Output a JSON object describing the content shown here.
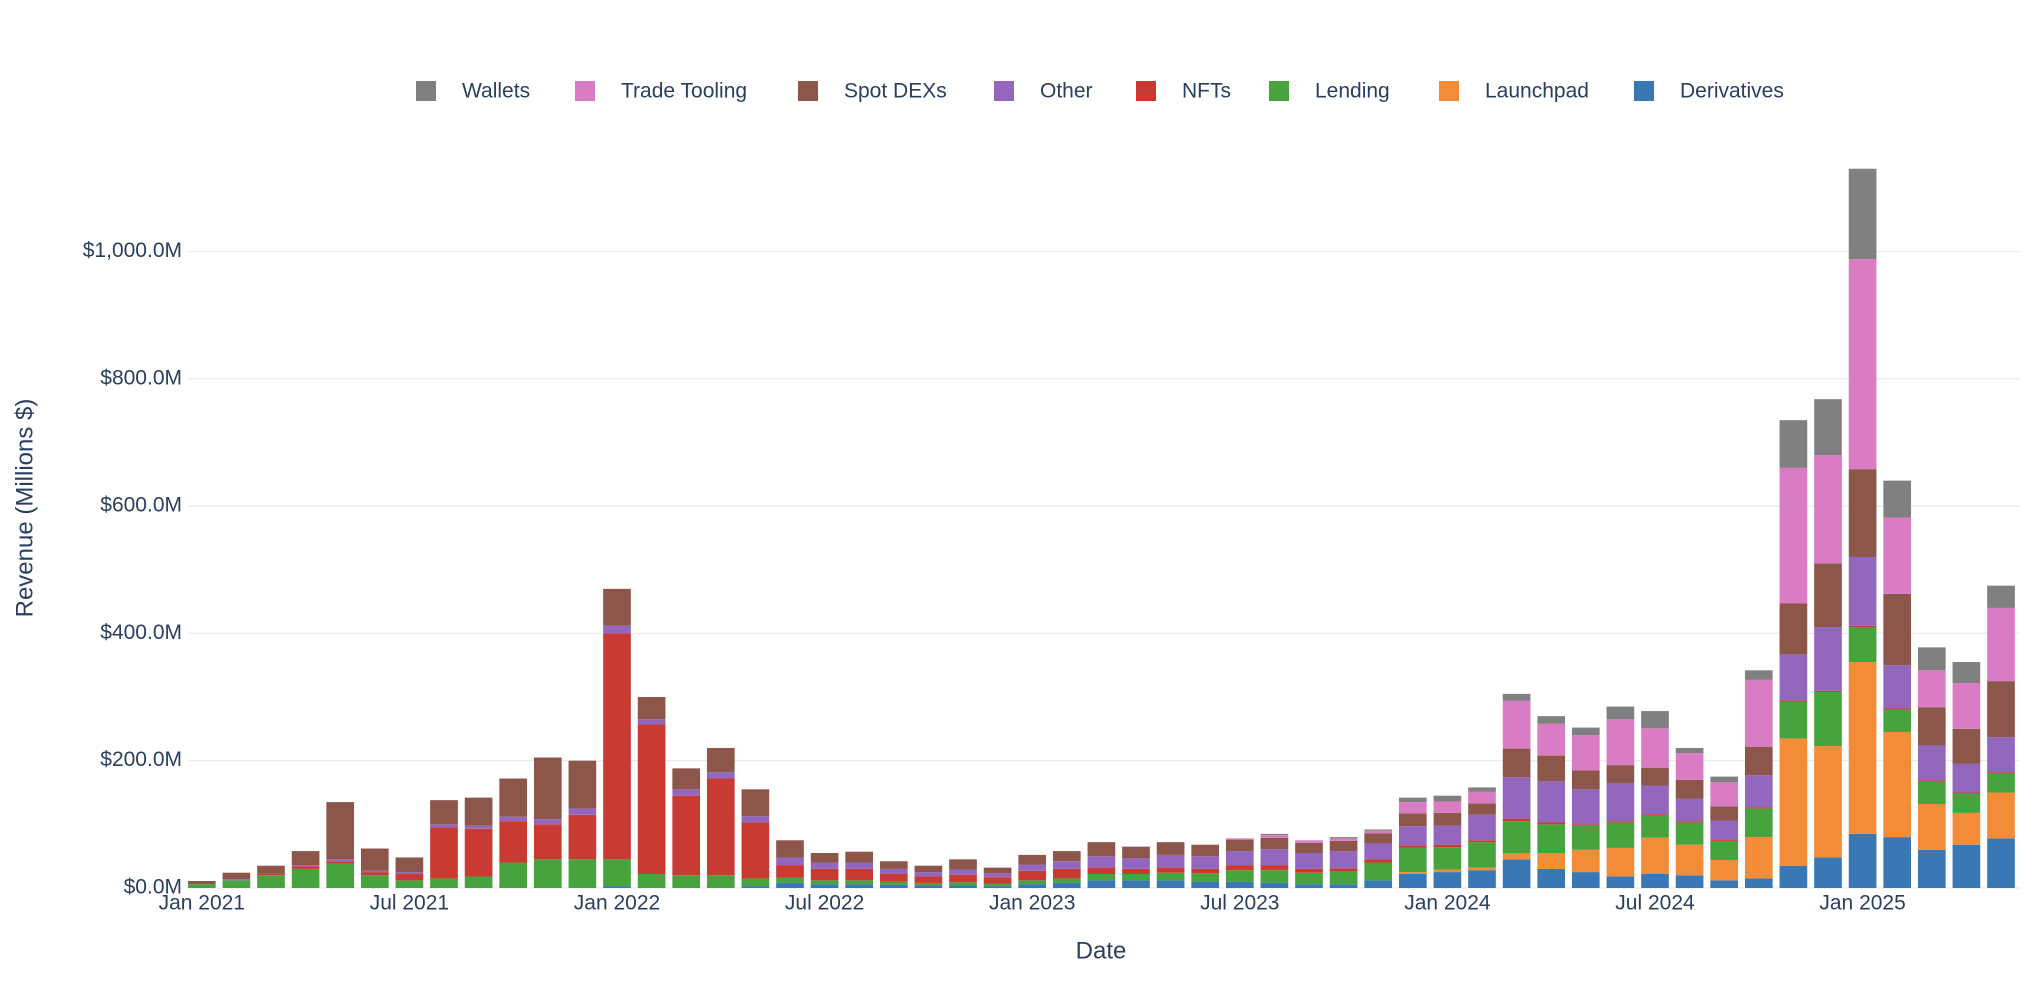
{
  "chart_data": {
    "type": "bar",
    "stacked": true,
    "x_label": "Date",
    "y_label": "Revenue (Millions $)",
    "categories": [
      "2021-01",
      "2021-02",
      "2021-03",
      "2021-04",
      "2021-05",
      "2021-06",
      "2021-07",
      "2021-08",
      "2021-09",
      "2021-10",
      "2021-11",
      "2021-12",
      "2022-01",
      "2022-02",
      "2022-03",
      "2022-04",
      "2022-05",
      "2022-06",
      "2022-07",
      "2022-08",
      "2022-09",
      "2022-10",
      "2022-11",
      "2022-12",
      "2023-01",
      "2023-02",
      "2023-03",
      "2023-04",
      "2023-05",
      "2023-06",
      "2023-07",
      "2023-08",
      "2023-09",
      "2023-10",
      "2023-11",
      "2023-12",
      "2024-01",
      "2024-02",
      "2024-03",
      "2024-04",
      "2024-05",
      "2024-06",
      "2024-07",
      "2024-08",
      "2024-09",
      "2024-10",
      "2024-11",
      "2024-12",
      "2025-01",
      "2025-02",
      "2025-03",
      "2025-04",
      "2025-05"
    ],
    "xticks": [
      {
        "value": "2021-01",
        "label": "Jan 2021"
      },
      {
        "value": "2021-07",
        "label": "Jul 2021"
      },
      {
        "value": "2022-01",
        "label": "Jan 2022"
      },
      {
        "value": "2022-07",
        "label": "Jul 2022"
      },
      {
        "value": "2023-01",
        "label": "Jan 2023"
      },
      {
        "value": "2023-07",
        "label": "Jul 2023"
      },
      {
        "value": "2024-01",
        "label": "Jan 2024"
      },
      {
        "value": "2024-07",
        "label": "Jul 2024"
      },
      {
        "value": "2025-01",
        "label": "Jan 2025"
      }
    ],
    "ylim": [
      0,
      1150
    ],
    "yticks": [
      {
        "value": 0,
        "label": "$0.0M"
      },
      {
        "value": 200,
        "label": "$200.0M"
      },
      {
        "value": 400,
        "label": "$400.0M"
      },
      {
        "value": 600,
        "label": "$600.0M"
      },
      {
        "value": 800,
        "label": "$800.0M"
      },
      {
        "value": 1000,
        "label": "$1,000.0M"
      }
    ],
    "grid": true,
    "legend": "top",
    "series": [
      {
        "name": "Derivatives",
        "color": "#3a78b5",
        "values": [
          0,
          0,
          0,
          0,
          0,
          0,
          0,
          0,
          0,
          0,
          0,
          0,
          3,
          0,
          0,
          0,
          3,
          8,
          6,
          6,
          5,
          4,
          4,
          3,
          6,
          8,
          12,
          12,
          12,
          10,
          10,
          8,
          6,
          6,
          12,
          22,
          25,
          28,
          45,
          30,
          25,
          18,
          22,
          20,
          12,
          15,
          35,
          48,
          85,
          80,
          60,
          68,
          78
        ]
      },
      {
        "name": "Launchpad",
        "color": "#f28c38",
        "values": [
          0,
          0,
          0,
          0,
          0,
          0,
          0,
          0,
          0,
          0,
          0,
          0,
          0,
          0,
          0,
          0,
          0,
          0,
          0,
          0,
          0,
          0,
          0,
          0,
          0,
          0,
          0,
          0,
          0,
          0,
          0,
          0,
          0,
          0,
          0,
          3,
          4,
          4,
          10,
          25,
          35,
          45,
          57,
          48,
          32,
          65,
          200,
          175,
          270,
          165,
          72,
          50,
          72
        ]
      },
      {
        "name": "Lending",
        "color": "#46a33e",
        "values": [
          6,
          12,
          20,
          30,
          38,
          20,
          12,
          15,
          18,
          40,
          45,
          45,
          42,
          22,
          20,
          20,
          12,
          8,
          6,
          6,
          5,
          4,
          5,
          4,
          6,
          7,
          10,
          10,
          12,
          13,
          18,
          20,
          18,
          20,
          28,
          38,
          35,
          40,
          50,
          45,
          38,
          40,
          35,
          35,
          30,
          45,
          58,
          85,
          55,
          35,
          35,
          30,
          30
        ]
      },
      {
        "name": "NFTs",
        "color": "#c93a33",
        "values": [
          0,
          0,
          3,
          4,
          4,
          5,
          10,
          80,
          75,
          65,
          55,
          70,
          355,
          235,
          125,
          152,
          88,
          20,
          18,
          18,
          12,
          10,
          12,
          10,
          15,
          15,
          10,
          8,
          8,
          7,
          8,
          8,
          6,
          5,
          5,
          4,
          4,
          3,
          4,
          3,
          2,
          2,
          2,
          2,
          2,
          2,
          2,
          2,
          2,
          2,
          2,
          2,
          2
        ]
      },
      {
        "name": "Other",
        "color": "#9267bd",
        "values": [
          0,
          2,
          0,
          2,
          3,
          2,
          3,
          5,
          5,
          7,
          8,
          10,
          12,
          8,
          10,
          10,
          10,
          12,
          10,
          10,
          8,
          7,
          8,
          6,
          10,
          12,
          18,
          17,
          20,
          20,
          22,
          25,
          25,
          27,
          25,
          30,
          30,
          40,
          65,
          65,
          55,
          60,
          45,
          35,
          30,
          50,
          72,
          100,
          108,
          68,
          55,
          45,
          55
        ]
      },
      {
        "name": "Spot DEXs",
        "color": "#8c564b",
        "values": [
          5,
          10,
          12,
          22,
          90,
          35,
          23,
          38,
          44,
          60,
          97,
          75,
          58,
          35,
          33,
          38,
          42,
          27,
          15,
          17,
          12,
          10,
          16,
          9,
          15,
          16,
          22,
          18,
          20,
          18,
          18,
          18,
          16,
          16,
          16,
          20,
          20,
          18,
          45,
          40,
          30,
          28,
          28,
          30,
          22,
          45,
          80,
          100,
          138,
          112,
          60,
          55,
          88
        ]
      },
      {
        "name": "Trade Tooling",
        "color": "#d97cc4",
        "values": [
          0,
          0,
          0,
          0,
          0,
          0,
          0,
          0,
          0,
          0,
          0,
          0,
          0,
          0,
          0,
          0,
          0,
          0,
          0,
          0,
          0,
          0,
          0,
          0,
          0,
          0,
          0,
          0,
          0,
          0,
          2,
          4,
          4,
          4,
          4,
          18,
          18,
          18,
          75,
          50,
          55,
          72,
          62,
          42,
          38,
          105,
          213,
          170,
          330,
          120,
          58,
          72,
          115
        ]
      },
      {
        "name": "Wallets",
        "color": "#808080",
        "values": [
          0,
          0,
          0,
          0,
          0,
          0,
          0,
          0,
          0,
          0,
          0,
          0,
          0,
          0,
          0,
          0,
          0,
          0,
          0,
          0,
          0,
          0,
          0,
          0,
          0,
          0,
          0,
          0,
          0,
          0,
          0,
          2,
          0,
          2,
          2,
          7,
          9,
          7,
          11,
          12,
          12,
          20,
          27,
          8,
          9,
          15,
          75,
          88,
          142,
          58,
          36,
          33,
          35
        ]
      }
    ]
  }
}
